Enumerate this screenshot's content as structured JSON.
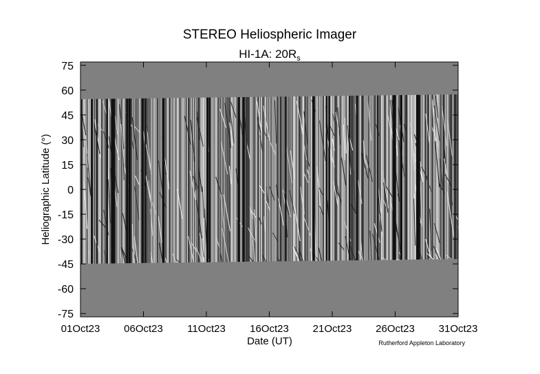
{
  "chart_data": {
    "type": "image",
    "title": "STEREO Heliospheric Imager",
    "subtitle": "HI-1A: 20R",
    "subtitle_subscript": "s",
    "x_label": "Date (UT)",
    "y_label": "Heliographic Latitude (°)",
    "credit": "Rutherford Appleton Laboratory",
    "xlim": [
      "2023-10-01",
      "2023-10-31"
    ],
    "xticks": [
      {
        "value": "2023-10-01",
        "label": "01Oct23"
      },
      {
        "value": "2023-10-06",
        "label": "06Oct23"
      },
      {
        "value": "2023-10-11",
        "label": "11Oct23"
      },
      {
        "value": "2023-10-16",
        "label": "16Oct23"
      },
      {
        "value": "2023-10-21",
        "label": "21Oct23"
      },
      {
        "value": "2023-10-26",
        "label": "26Oct23"
      },
      {
        "value": "2023-10-31",
        "label": "31Oct23"
      }
    ],
    "ylim": [
      -77,
      77
    ],
    "yticks": [
      75,
      60,
      45,
      30,
      15,
      0,
      -15,
      -30,
      -45,
      -60,
      -75
    ]
  }
}
